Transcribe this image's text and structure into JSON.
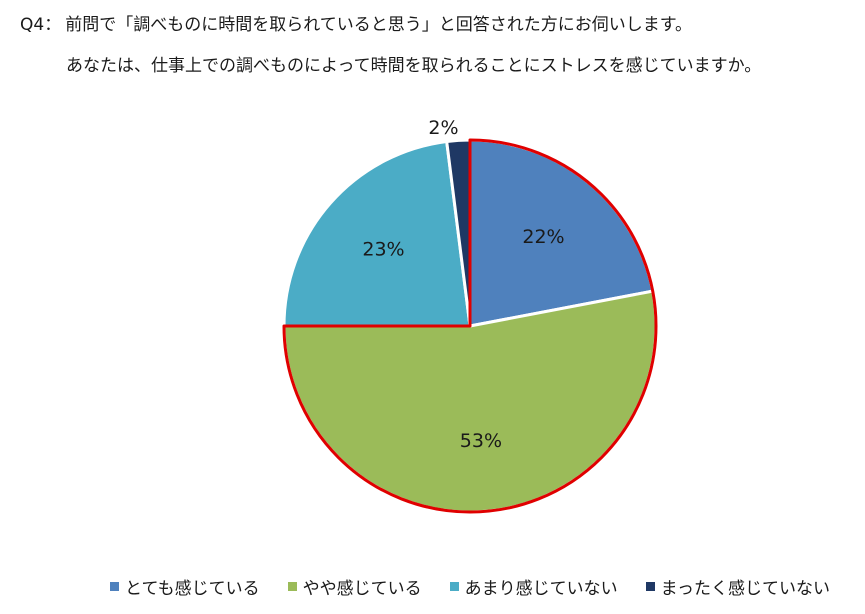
{
  "question": {
    "number": "Q4：",
    "text": "前問で「調べものに時間を取られていると思う」と回答された方にお伺いします。",
    "subtext": "あなたは、仕事上での調べものによって時間を取られることにストレスを感じていますか。"
  },
  "chart_data": {
    "type": "pie",
    "start_angle_deg": 0,
    "direction": "clockwise",
    "slices": [
      {
        "label": "とても感じている",
        "value": 22,
        "display": "22%",
        "color": "#4f81bd",
        "highlighted": true
      },
      {
        "label": "やや感じている",
        "value": 53,
        "display": "53%",
        "color": "#9bbb59",
        "highlighted": true
      },
      {
        "label": "あまり感じていない",
        "value": 23,
        "display": "23%",
        "color": "#4bacc6",
        "highlighted": false
      },
      {
        "label": "まったく感じていない",
        "value": 2,
        "display": "2%",
        "color": "#1f3864",
        "highlighted": false
      }
    ],
    "highlight_color": "#e00000",
    "legend_position": "bottom"
  }
}
